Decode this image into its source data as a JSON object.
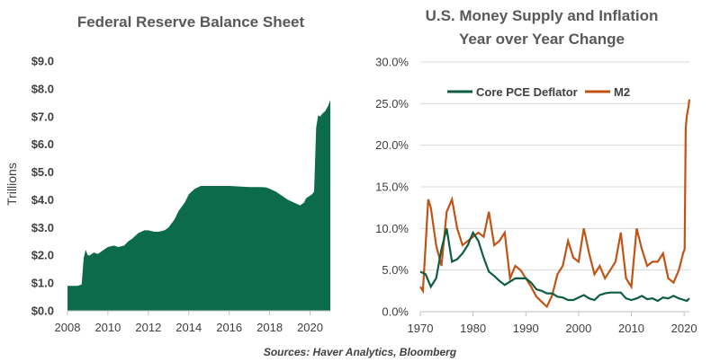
{
  "colors": {
    "fed_fill": "#0b6b4a",
    "core_pce": "#0d5e3e",
    "m2": "#c05417",
    "grid": "#d9d9d9",
    "axis": "#bfbfbf"
  },
  "source_note": "Sources: Haver Analytics, Bloomberg",
  "chart_data": [
    {
      "type": "area",
      "title": "Federal Reserve Balance Sheet",
      "xlabel": "",
      "ylabel": "Trillions",
      "xlim": [
        2008,
        2021
      ],
      "ylim": [
        0,
        9
      ],
      "x_ticks": [
        "2008",
        "2010",
        "2012",
        "2014",
        "2016",
        "2018",
        "2020"
      ],
      "y_ticks": [
        "$0.0",
        "$1.0",
        "$2.0",
        "$3.0",
        "$4.0",
        "$5.0",
        "$6.0",
        "$7.0",
        "$8.0",
        "$9.0"
      ],
      "grid": false,
      "series": [
        {
          "x": [
            2008.0,
            2008.5,
            2008.7,
            2008.8,
            2008.9,
            2009.0,
            2009.1,
            2009.3,
            2009.5,
            2009.8,
            2010.0,
            2010.3,
            2010.5,
            2010.8,
            2011.0,
            2011.2,
            2011.5,
            2011.8,
            2012.0,
            2012.3,
            2012.5,
            2012.8,
            2013.0,
            2013.3,
            2013.5,
            2013.8,
            2014.0,
            2014.3,
            2014.6,
            2014.8,
            2015.0,
            2015.5,
            2016.0,
            2016.5,
            2017.0,
            2017.5,
            2017.8,
            2018.0,
            2018.3,
            2018.6,
            2018.9,
            2019.2,
            2019.5,
            2019.7,
            2019.8,
            2020.0,
            2020.1,
            2020.2,
            2020.25,
            2020.3,
            2020.4,
            2020.5,
            2020.6,
            2020.75,
            2020.9,
            2021.0
          ],
          "values": [
            0.9,
            0.9,
            0.95,
            1.9,
            2.2,
            2.0,
            2.0,
            2.1,
            2.05,
            2.2,
            2.3,
            2.35,
            2.3,
            2.35,
            2.5,
            2.6,
            2.8,
            2.9,
            2.9,
            2.85,
            2.85,
            2.9,
            3.0,
            3.3,
            3.6,
            3.9,
            4.2,
            4.4,
            4.5,
            4.5,
            4.5,
            4.5,
            4.5,
            4.48,
            4.46,
            4.46,
            4.45,
            4.4,
            4.3,
            4.15,
            4.0,
            3.9,
            3.8,
            3.9,
            4.05,
            4.15,
            4.2,
            4.3,
            5.5,
            6.6,
            7.05,
            7.0,
            7.1,
            7.2,
            7.4,
            7.6
          ]
        }
      ]
    },
    {
      "type": "line",
      "title": "U.S. Money Supply and Inflation",
      "subtitle": "Year over Year Change",
      "xlabel": "",
      "ylabel": "",
      "xlim": [
        1970,
        2021
      ],
      "ylim": [
        0,
        30
      ],
      "x_ticks": [
        "1970",
        "1980",
        "1990",
        "2000",
        "2010",
        "2020"
      ],
      "y_ticks": [
        "0.0%",
        "5.0%",
        "10.0%",
        "15.0%",
        "20.0%",
        "25.0%",
        "30.0%"
      ],
      "grid": true,
      "legend": "top-left",
      "series": [
        {
          "name": "Core PCE Deflator",
          "x": [
            1970,
            1971,
            1972,
            1973,
            1974,
            1975,
            1976,
            1977,
            1978,
            1979,
            1980,
            1981,
            1982,
            1983,
            1984,
            1985,
            1986,
            1987,
            1988,
            1989,
            1990,
            1991,
            1992,
            1993,
            1994,
            1995,
            1996,
            1997,
            1998,
            1999,
            2000,
            2001,
            2002,
            2003,
            2004,
            2005,
            2006,
            2007,
            2008,
            2009,
            2010,
            2011,
            2012,
            2013,
            2014,
            2015,
            2016,
            2017,
            2018,
            2019,
            2020,
            2020.5,
            2021
          ],
          "values": [
            4.8,
            4.5,
            3.0,
            4.0,
            7.5,
            10.0,
            6.0,
            6.3,
            7.0,
            8.0,
            9.5,
            8.5,
            6.5,
            4.8,
            4.3,
            3.7,
            3.2,
            3.6,
            4.0,
            4.0,
            4.0,
            3.5,
            2.7,
            2.5,
            2.2,
            2.2,
            1.8,
            1.7,
            1.4,
            1.4,
            1.7,
            2.0,
            1.6,
            1.4,
            2.0,
            2.2,
            2.3,
            2.3,
            2.3,
            1.6,
            1.4,
            1.6,
            1.9,
            1.5,
            1.6,
            1.3,
            1.7,
            1.6,
            1.9,
            1.6,
            1.4,
            1.3,
            1.6
          ]
        },
        {
          "name": "M2",
          "x": [
            1970,
            1970.5,
            1971,
            1971.5,
            1972,
            1973,
            1974,
            1975,
            1976,
            1977,
            1978,
            1979,
            1980,
            1981,
            1982,
            1983,
            1984,
            1985,
            1986,
            1987,
            1988,
            1989,
            1990,
            1991,
            1992,
            1993,
            1994,
            1995,
            1996,
            1997,
            1998,
            1999,
            2000,
            2001,
            2002,
            2003,
            2004,
            2005,
            2006,
            2007,
            2008,
            2009,
            2010,
            2011,
            2012,
            2013,
            2014,
            2015,
            2016,
            2017,
            2018,
            2019,
            2019.8,
            2020.1,
            2020.3,
            2020.5,
            2020.8,
            2021
          ],
          "values": [
            3.0,
            2.5,
            8.0,
            13.5,
            12.5,
            8.0,
            5.5,
            12.0,
            13.5,
            10.0,
            8.0,
            8.5,
            9.0,
            9.5,
            9.0,
            12.0,
            8.0,
            8.5,
            9.5,
            4.0,
            5.5,
            5.0,
            4.0,
            3.0,
            1.8,
            1.2,
            0.6,
            2.0,
            4.5,
            5.5,
            8.5,
            6.5,
            6.0,
            10.0,
            7.0,
            4.5,
            5.5,
            4.0,
            5.0,
            6.0,
            9.5,
            4.0,
            3.0,
            10.0,
            7.5,
            5.5,
            6.0,
            6.0,
            7.0,
            4.0,
            3.5,
            5.0,
            7.0,
            7.5,
            22.0,
            23.5,
            24.5,
            25.5
          ]
        }
      ]
    }
  ]
}
